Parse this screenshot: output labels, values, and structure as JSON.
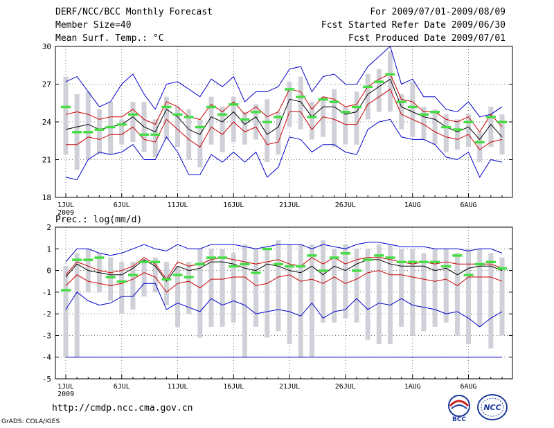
{
  "header": {
    "title": "DERF/NCC/BCC Monthly Forecast",
    "member_size": "Member Size=40",
    "variable": "Mean Surf. Temp.: °C",
    "period": "For 2009/07/01-2009/08/09",
    "started": "Fcst Started Refer Date 2009/06/30",
    "produced": "Fcst Produced Date 2009/07/01"
  },
  "footer": {
    "url": "http://cmdp.ncc.cma.gov.cn",
    "grads": "GrADS: COLA/IGES",
    "logo_bcc": "BCC",
    "logo_ncc": "NCC"
  },
  "colors": {
    "max": "#0000cc",
    "pct": "#cc0000",
    "mean": "#000000",
    "bar": "#d0d0d8",
    "member": "#44dd44"
  },
  "chart_data": [
    {
      "type": "line",
      "title": "Mean Surf. Temp.: °C",
      "ylim": [
        18,
        30
      ],
      "yticks": [
        18,
        21,
        24,
        27,
        30
      ],
      "xtick_labels": [
        "1JUL",
        "6JUL",
        "11JUL",
        "16JUL",
        "21JUL",
        "26JUL",
        "1AUG",
        "6AUG"
      ],
      "xtick_days": [
        0,
        5,
        10,
        15,
        20,
        25,
        31,
        36
      ],
      "year_label": "2009",
      "days": 40,
      "series": [
        {
          "name": "max",
          "values": [
            27.2,
            27.6,
            26.4,
            25.2,
            25.6,
            27.0,
            27.8,
            26.2,
            25.0,
            27.0,
            27.2,
            26.6,
            26.0,
            27.4,
            26.8,
            27.6,
            25.6,
            26.4,
            26.4,
            26.8,
            28.2,
            28.4,
            26.4,
            27.6,
            27.8,
            27.0,
            27.0,
            28.4,
            29.2,
            30.0,
            27.0,
            27.4,
            26.0,
            26.0,
            25.0,
            24.8,
            25.6,
            24.4,
            24.6,
            25.2
          ]
        },
        {
          "name": "p_high",
          "values": [
            24.6,
            24.8,
            24.6,
            24.2,
            24.4,
            24.4,
            25.0,
            24.2,
            23.8,
            25.6,
            25.2,
            24.4,
            24.2,
            25.4,
            24.8,
            25.6,
            24.6,
            25.2,
            24.4,
            24.8,
            26.6,
            26.4,
            25.0,
            26.0,
            25.8,
            25.2,
            25.4,
            26.8,
            27.4,
            27.8,
            25.8,
            25.6,
            24.8,
            24.8,
            24.2,
            24.0,
            24.4,
            23.2,
            24.6,
            23.6
          ]
        },
        {
          "name": "mean",
          "values": [
            23.4,
            23.6,
            23.8,
            23.4,
            23.6,
            23.8,
            24.4,
            23.6,
            23.2,
            25.0,
            24.4,
            23.4,
            23.0,
            24.4,
            24.0,
            24.8,
            23.8,
            24.4,
            23.0,
            23.6,
            25.8,
            25.6,
            24.4,
            25.2,
            25.2,
            24.6,
            24.8,
            26.2,
            26.8,
            27.4,
            25.2,
            24.8,
            24.4,
            24.2,
            23.6,
            23.2,
            23.6,
            22.6,
            23.8,
            22.8
          ]
        },
        {
          "name": "p_low",
          "values": [
            22.2,
            22.2,
            22.8,
            22.6,
            23.0,
            23.0,
            23.6,
            22.6,
            22.4,
            24.2,
            23.4,
            22.6,
            22.0,
            23.6,
            23.0,
            24.0,
            23.2,
            23.6,
            22.2,
            22.4,
            24.8,
            24.8,
            23.4,
            24.4,
            24.2,
            23.8,
            23.8,
            25.4,
            26.0,
            26.6,
            24.6,
            24.2,
            23.8,
            23.2,
            22.8,
            22.6,
            23.0,
            21.8,
            22.4,
            22.6
          ]
        },
        {
          "name": "min",
          "values": [
            19.6,
            19.4,
            21.0,
            21.6,
            21.4,
            21.6,
            22.2,
            21.0,
            21.0,
            22.8,
            21.6,
            19.8,
            19.8,
            21.4,
            20.8,
            21.6,
            20.8,
            21.6,
            19.6,
            20.4,
            22.8,
            22.6,
            21.6,
            22.2,
            22.2,
            21.6,
            21.4,
            23.4,
            24.0,
            24.2,
            22.8,
            22.6,
            22.6,
            22.2,
            21.2,
            21.0,
            21.6,
            19.6,
            21.0,
            20.8
          ]
        }
      ],
      "ensemble_box": {
        "low": [
          21.4,
          20.2,
          21.0,
          21.4,
          21.4,
          22.2,
          22.4,
          21.6,
          21.2,
          22.6,
          22.0,
          21.0,
          20.4,
          22.2,
          21.6,
          22.4,
          22.2,
          22.6,
          20.8,
          21.4,
          23.6,
          23.4,
          22.6,
          22.8,
          22.0,
          22.2,
          22.2,
          24.2,
          24.8,
          24.8,
          23.4,
          22.8,
          22.6,
          22.2,
          21.6,
          21.8,
          22.0,
          20.8,
          22.0,
          21.4
        ],
        "high": [
          27.6,
          26.2,
          26.4,
          25.0,
          25.6,
          24.2,
          25.6,
          25.6,
          24.2,
          26.0,
          25.2,
          25.0,
          24.2,
          26.0,
          25.2,
          26.0,
          24.8,
          25.4,
          25.8,
          24.8,
          27.2,
          27.6,
          25.6,
          26.0,
          26.6,
          25.2,
          26.4,
          27.8,
          28.2,
          29.6,
          26.2,
          27.2,
          25.2,
          25.0,
          24.6,
          24.2,
          24.6,
          23.2,
          25.2,
          24.6
        ],
        "member": [
          25.2,
          23.2,
          23.2,
          23.4,
          23.6,
          23.8,
          24.6,
          23.0,
          23.0,
          25.2,
          24.6,
          24.4,
          23.6,
          25.2,
          24.6,
          25.4,
          24.2,
          24.8,
          24.0,
          24.4,
          26.6,
          26.0,
          24.4,
          25.8,
          25.6,
          24.8,
          25.2,
          26.8,
          27.2,
          27.8,
          25.6,
          25.2,
          24.6,
          24.8,
          23.6,
          23.4,
          24.0,
          22.4,
          24.4,
          24.0
        ]
      }
    },
    {
      "type": "line",
      "title": "Prec.: log(mm/d)",
      "ylim": [
        -5,
        2
      ],
      "yticks": [
        -5,
        -4,
        -3,
        -2,
        -1,
        0,
        1,
        2
      ],
      "xtick_labels": [
        "1JUL",
        "6JUL",
        "11JUL",
        "16JUL",
        "21JUL",
        "26JUL",
        "1AUG",
        "6AUG"
      ],
      "xtick_days": [
        0,
        5,
        10,
        15,
        20,
        25,
        31,
        36
      ],
      "year_label": "2009",
      "days": 40,
      "floor": -4,
      "series": [
        {
          "name": "max",
          "values": [
            0.4,
            1.0,
            1.0,
            0.8,
            0.7,
            0.8,
            1.0,
            1.2,
            1.0,
            0.9,
            1.2,
            1.0,
            1.0,
            1.2,
            1.2,
            1.2,
            1.1,
            1.0,
            1.1,
            1.2,
            1.2,
            1.2,
            1.0,
            1.2,
            1.1,
            1.0,
            1.2,
            1.3,
            1.3,
            1.2,
            1.1,
            1.1,
            1.1,
            1.0,
            1.0,
            1.0,
            0.9,
            1.0,
            1.0,
            0.8
          ]
        },
        {
          "name": "p_high",
          "values": [
            -0.2,
            0.4,
            0.2,
            0.0,
            -0.1,
            0.0,
            0.2,
            0.6,
            0.3,
            -0.4,
            0.4,
            0.2,
            0.3,
            0.5,
            0.6,
            0.5,
            0.4,
            0.3,
            0.4,
            0.5,
            0.3,
            0.2,
            0.6,
            0.3,
            0.6,
            0.3,
            0.5,
            0.6,
            0.6,
            0.5,
            0.4,
            0.3,
            0.4,
            0.3,
            0.4,
            0.3,
            0.3,
            0.3,
            0.3,
            0.1
          ]
        },
        {
          "name": "mean",
          "values": [
            -0.3,
            0.3,
            0.0,
            -0.1,
            -0.2,
            -0.2,
            0.1,
            0.5,
            0.2,
            -0.5,
            0.2,
            0.0,
            0.1,
            0.4,
            0.4,
            0.3,
            0.1,
            0.0,
            0.3,
            0.2,
            0.0,
            -0.1,
            0.2,
            -0.2,
            0.2,
            0.0,
            0.3,
            0.5,
            0.5,
            0.3,
            0.2,
            0.2,
            0.2,
            0.0,
            0.1,
            -0.2,
            0.1,
            0.2,
            0.2,
            0.0
          ]
        },
        {
          "name": "p_low",
          "values": [
            -0.7,
            -0.2,
            -0.5,
            -0.6,
            -0.7,
            -0.6,
            -0.4,
            -0.1,
            -0.3,
            -1.0,
            -0.6,
            -0.5,
            -0.8,
            -0.4,
            -0.4,
            -0.3,
            -0.3,
            -0.7,
            -0.6,
            -0.3,
            -0.2,
            -0.5,
            -0.4,
            -0.6,
            -0.3,
            -0.6,
            -0.4,
            -0.1,
            0.0,
            -0.2,
            -0.2,
            -0.3,
            -0.4,
            -0.5,
            -0.4,
            -0.7,
            -0.3,
            -0.3,
            -0.3,
            -0.5
          ]
        },
        {
          "name": "min",
          "values": [
            -1.8,
            -1.0,
            -1.4,
            -1.6,
            -1.5,
            -1.2,
            -1.2,
            -0.6,
            -0.6,
            -1.8,
            -1.5,
            -1.7,
            -1.9,
            -1.3,
            -1.6,
            -1.4,
            -1.6,
            -2.0,
            -1.9,
            -1.8,
            -1.9,
            -2.1,
            -1.5,
            -2.2,
            -1.9,
            -1.8,
            -1.3,
            -1.8,
            -1.5,
            -1.6,
            -1.3,
            -1.6,
            -1.7,
            -1.8,
            -2.0,
            -1.9,
            -2.2,
            -2.6,
            -2.2,
            -1.9
          ]
        }
      ],
      "ensemble_box": {
        "low": [
          -4.0,
          -4.0,
          -1.0,
          -1.0,
          -1.4,
          -2.0,
          -1.8,
          -1.2,
          -1.0,
          -1.6,
          -2.6,
          -2.0,
          -3.1,
          -2.6,
          -2.6,
          -2.4,
          -4.0,
          -2.6,
          -3.1,
          -2.8,
          -3.4,
          -4.0,
          -4.0,
          -2.4,
          -2.4,
          -2.2,
          -2.4,
          -3.2,
          -3.4,
          -3.4,
          -2.6,
          -3.0,
          -2.8,
          -2.6,
          -2.4,
          -3.0,
          -3.4,
          -2.6,
          -3.6,
          -3.0
        ],
        "high": [
          0.2,
          0.8,
          1.0,
          0.8,
          0.6,
          0.4,
          0.4,
          0.5,
          0.6,
          0.4,
          0.2,
          0.4,
          1.0,
          1.0,
          1.0,
          0.8,
          1.2,
          1.0,
          1.0,
          1.4,
          1.2,
          1.2,
          1.2,
          1.4,
          1.0,
          1.2,
          1.0,
          1.0,
          1.2,
          1.2,
          1.0,
          1.0,
          0.8,
          1.0,
          1.0,
          0.8,
          1.0,
          1.0,
          0.8,
          0.6
        ],
        "member": [
          -0.9,
          0.5,
          0.5,
          0.6,
          -0.3,
          -0.5,
          -0.2,
          0.4,
          0.4,
          -0.4,
          -0.2,
          -0.3,
          0.3,
          0.6,
          0.6,
          0.2,
          0.3,
          -0.1,
          1.0,
          0.3,
          0.2,
          0.2,
          0.7,
          0.0,
          0.6,
          0.8,
          0.0,
          0.5,
          0.7,
          0.6,
          0.4,
          0.4,
          0.4,
          0.4,
          0.2,
          0.7,
          -0.2,
          0.3,
          0.4,
          0.1
        ]
      }
    }
  ]
}
